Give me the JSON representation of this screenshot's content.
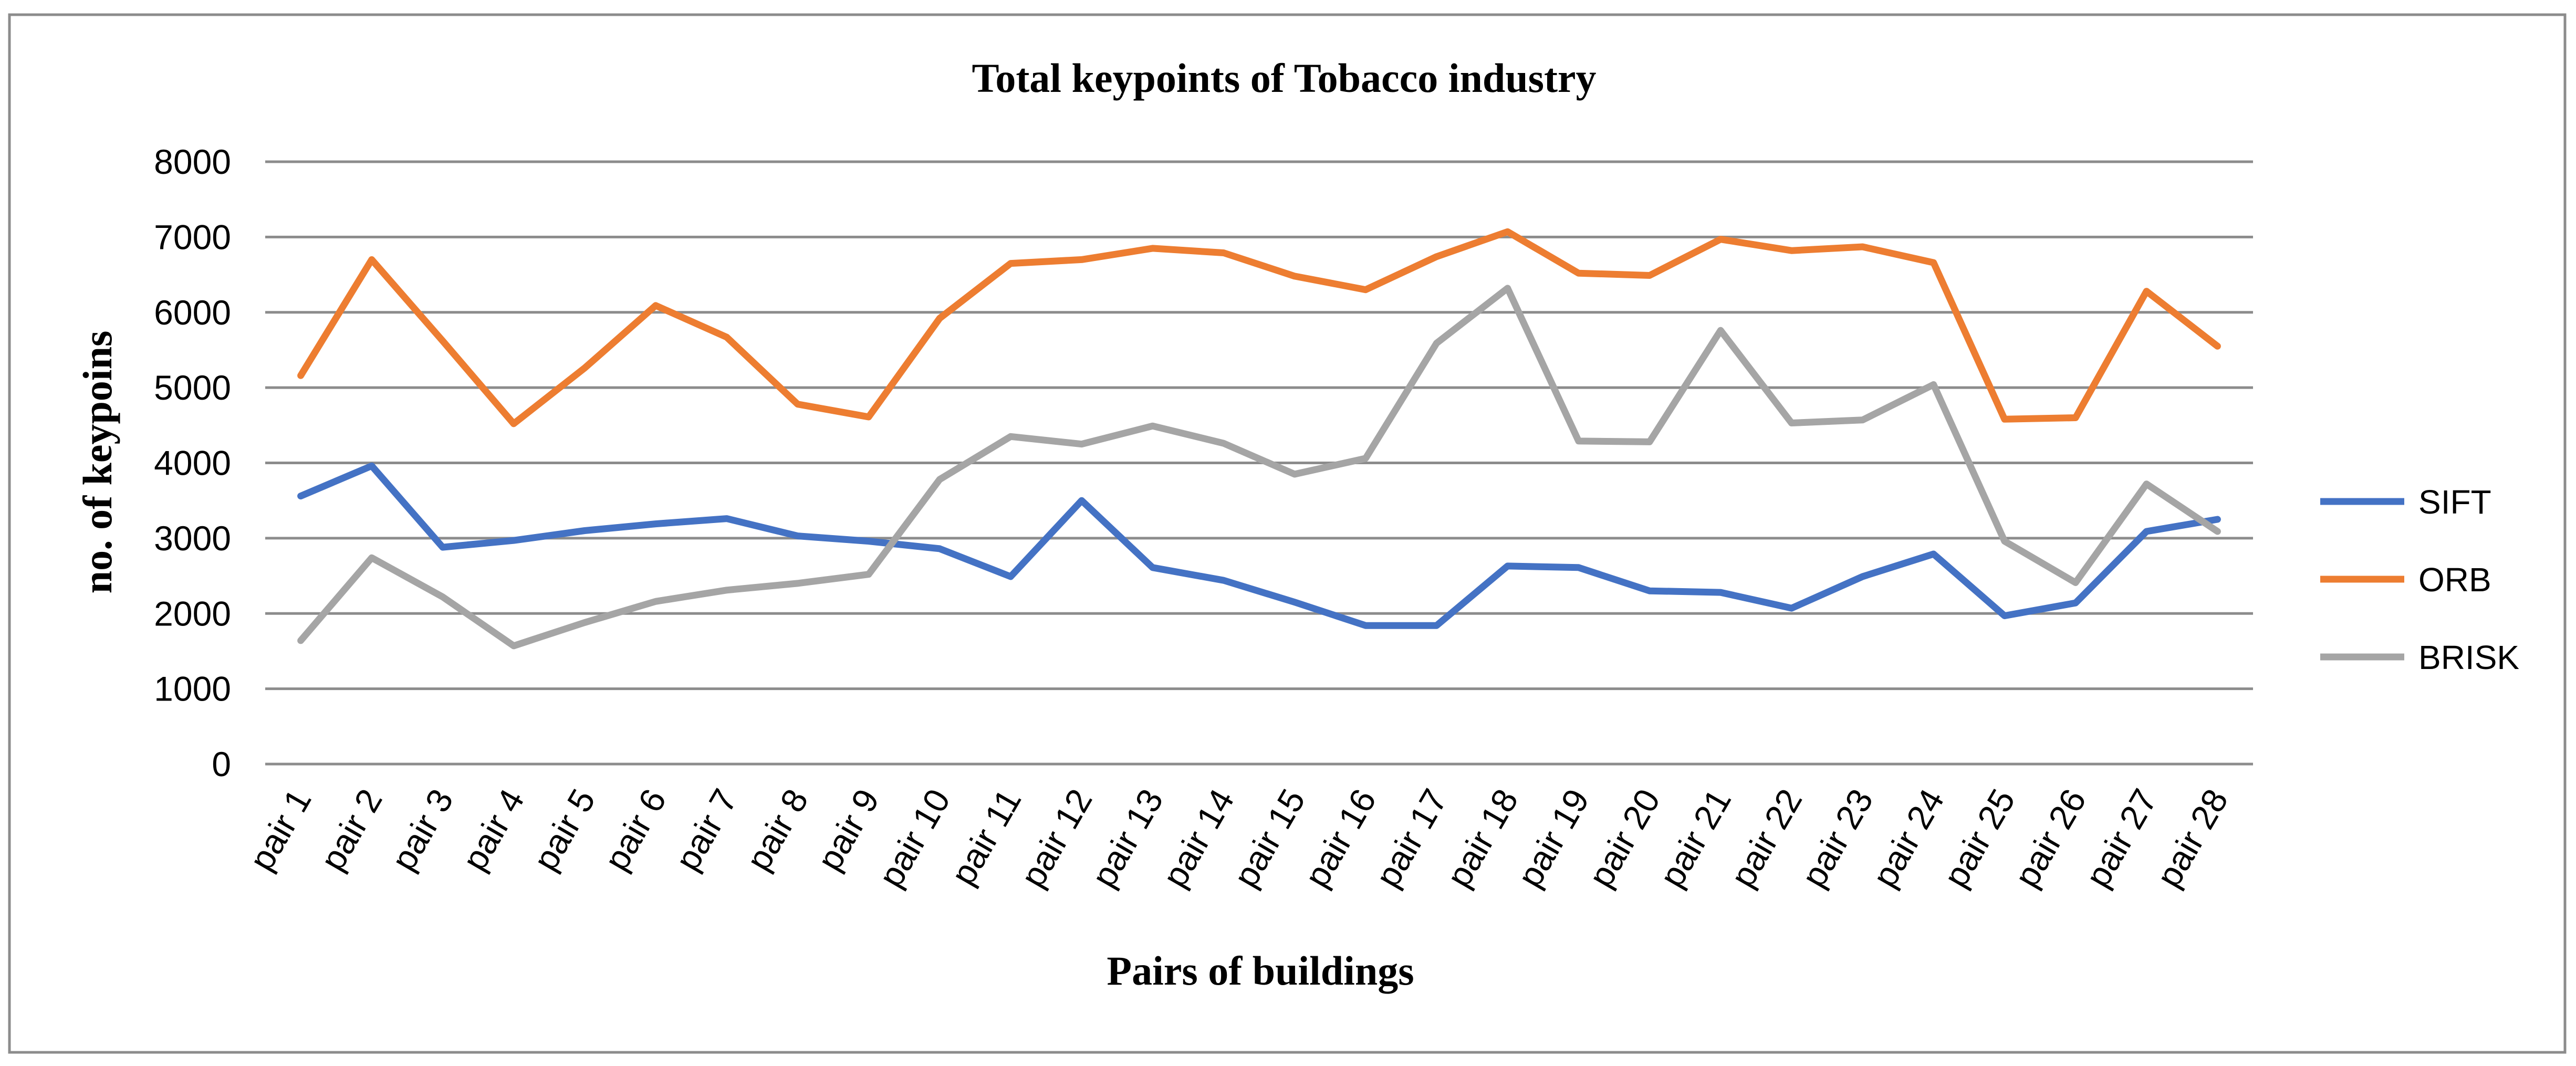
{
  "chart_data": {
    "type": "line",
    "title": "Total keypoints of Tobacco industry",
    "xlabel": "Pairs of buildings",
    "ylabel": "no. of  keypoins",
    "ylim": [
      0,
      8000
    ],
    "yticks": [
      0,
      1000,
      2000,
      3000,
      4000,
      5000,
      6000,
      7000,
      8000
    ],
    "grid": true,
    "legend_position": "right",
    "categories": [
      "pair 1",
      "pair 2",
      "pair 3",
      "pair 4",
      "pair 5",
      "pair 6",
      "pair 7",
      "pair 8",
      "pair 9",
      "pair 10",
      "pair 11",
      "pair 12",
      "pair 13",
      "pair 14",
      "pair 15",
      "pair 16",
      "pair 17",
      "pair 18",
      "pair 19",
      "pair 20",
      "pair 21",
      "pair 22",
      "pair 23",
      "pair 24",
      "pair 25",
      "pair 26",
      "pair 27",
      "pair 28"
    ],
    "series": [
      {
        "name": "SIFT",
        "color": "#4472C4",
        "values": [
          3560,
          3960,
          2880,
          2970,
          3100,
          3190,
          3260,
          3030,
          2960,
          2860,
          2490,
          3500,
          2610,
          2440,
          2150,
          1840,
          1840,
          2630,
          2610,
          2300,
          2280,
          2070,
          2490,
          2790,
          1970,
          2140,
          3090,
          3250
        ]
      },
      {
        "name": "ORB",
        "color": "#ED7D31",
        "values": [
          5160,
          6700,
          5620,
          4520,
          5260,
          6090,
          5670,
          4780,
          4610,
          5920,
          6650,
          6700,
          6850,
          6790,
          6480,
          6300,
          6740,
          7070,
          6520,
          6490,
          6970,
          6820,
          6870,
          6660,
          4580,
          4600,
          6280,
          5550
        ]
      },
      {
        "name": "BRISK",
        "color": "#A5A5A5",
        "values": [
          1640,
          2740,
          2220,
          1570,
          1880,
          2160,
          2310,
          2400,
          2520,
          3780,
          4350,
          4250,
          4490,
          4260,
          3850,
          4060,
          5590,
          6320,
          4290,
          4280,
          5760,
          4530,
          4570,
          5040,
          2960,
          2410,
          3720,
          3090
        ]
      }
    ]
  }
}
